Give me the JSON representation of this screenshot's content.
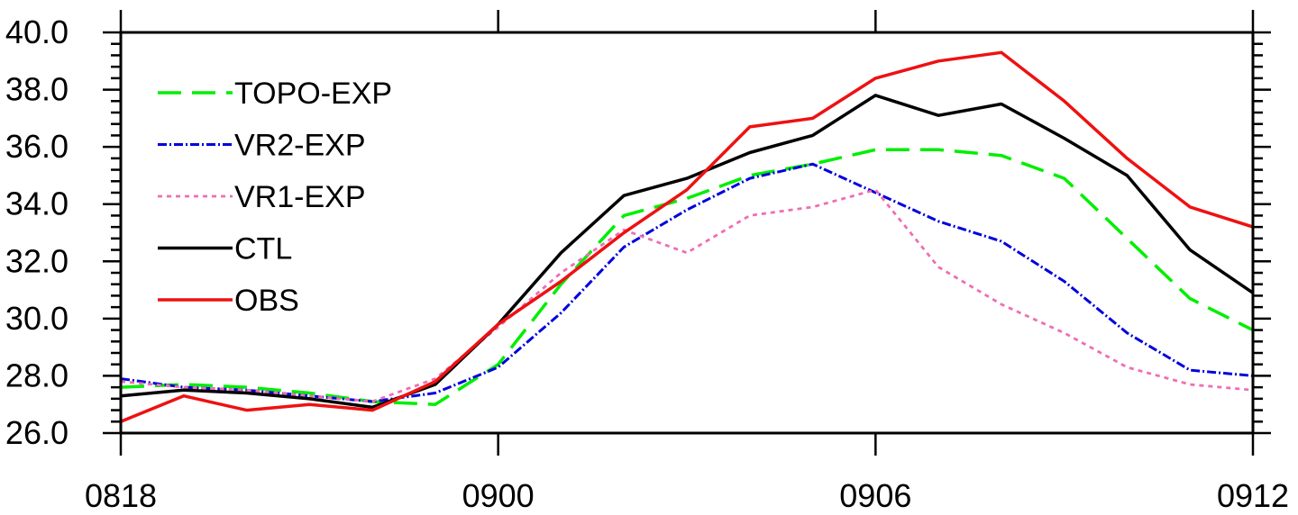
{
  "chart_data": {
    "type": "line",
    "x": [
      "0818",
      "0819",
      "0820",
      "0821",
      "0822",
      "0823",
      "0900",
      "0901",
      "0902",
      "0903",
      "0904",
      "0905",
      "0906",
      "0907",
      "0908",
      "0909",
      "0910",
      "0911",
      "0912"
    ],
    "x_tick_labels": [
      "0818",
      "0900",
      "0906",
      "0912"
    ],
    "y_tick_labels": [
      "26.0",
      "28.0",
      "30.0",
      "32.0",
      "34.0",
      "36.0",
      "38.0",
      "40.0"
    ],
    "ylim": [
      26,
      40
    ],
    "grid": false,
    "legend_position": "top-left",
    "series": [
      {
        "name": "TOPO-EXP",
        "color": "#00ee00",
        "dash": "long-dash",
        "values": [
          27.6,
          27.7,
          27.6,
          27.4,
          27.1,
          27.0,
          28.4,
          31.2,
          33.6,
          34.2,
          35.0,
          35.4,
          35.9,
          35.9,
          35.7,
          34.9,
          32.8,
          30.7,
          29.6
        ]
      },
      {
        "name": "VR2-EXP",
        "color": "#0000dd",
        "dash": "dash-dot",
        "values": [
          27.9,
          27.6,
          27.5,
          27.3,
          27.1,
          27.4,
          28.3,
          30.2,
          32.5,
          33.8,
          34.9,
          35.4,
          34.4,
          33.4,
          32.7,
          31.3,
          29.5,
          28.2,
          28.0
        ]
      },
      {
        "name": "VR1-EXP",
        "color": "#ee6eb4",
        "dash": "dotted",
        "values": [
          27.8,
          27.6,
          27.5,
          27.3,
          27.1,
          27.9,
          29.7,
          31.6,
          33.1,
          32.3,
          33.6,
          33.9,
          34.5,
          31.8,
          30.5,
          29.5,
          28.3,
          27.7,
          27.5
        ]
      },
      {
        "name": "CTL",
        "color": "#000000",
        "dash": "solid",
        "values": [
          27.3,
          27.5,
          27.4,
          27.2,
          26.9,
          27.7,
          29.8,
          32.3,
          34.3,
          34.9,
          35.8,
          36.4,
          37.8,
          37.1,
          37.5,
          36.3,
          35.0,
          32.4,
          30.9
        ]
      },
      {
        "name": "OBS",
        "color": "#ee1111",
        "dash": "solid",
        "values": [
          26.4,
          27.3,
          26.8,
          27.0,
          26.8,
          27.8,
          29.8,
          31.3,
          33.0,
          34.5,
          36.7,
          37.0,
          38.4,
          39.0,
          39.3,
          37.6,
          35.6,
          33.9,
          33.2
        ]
      }
    ]
  }
}
